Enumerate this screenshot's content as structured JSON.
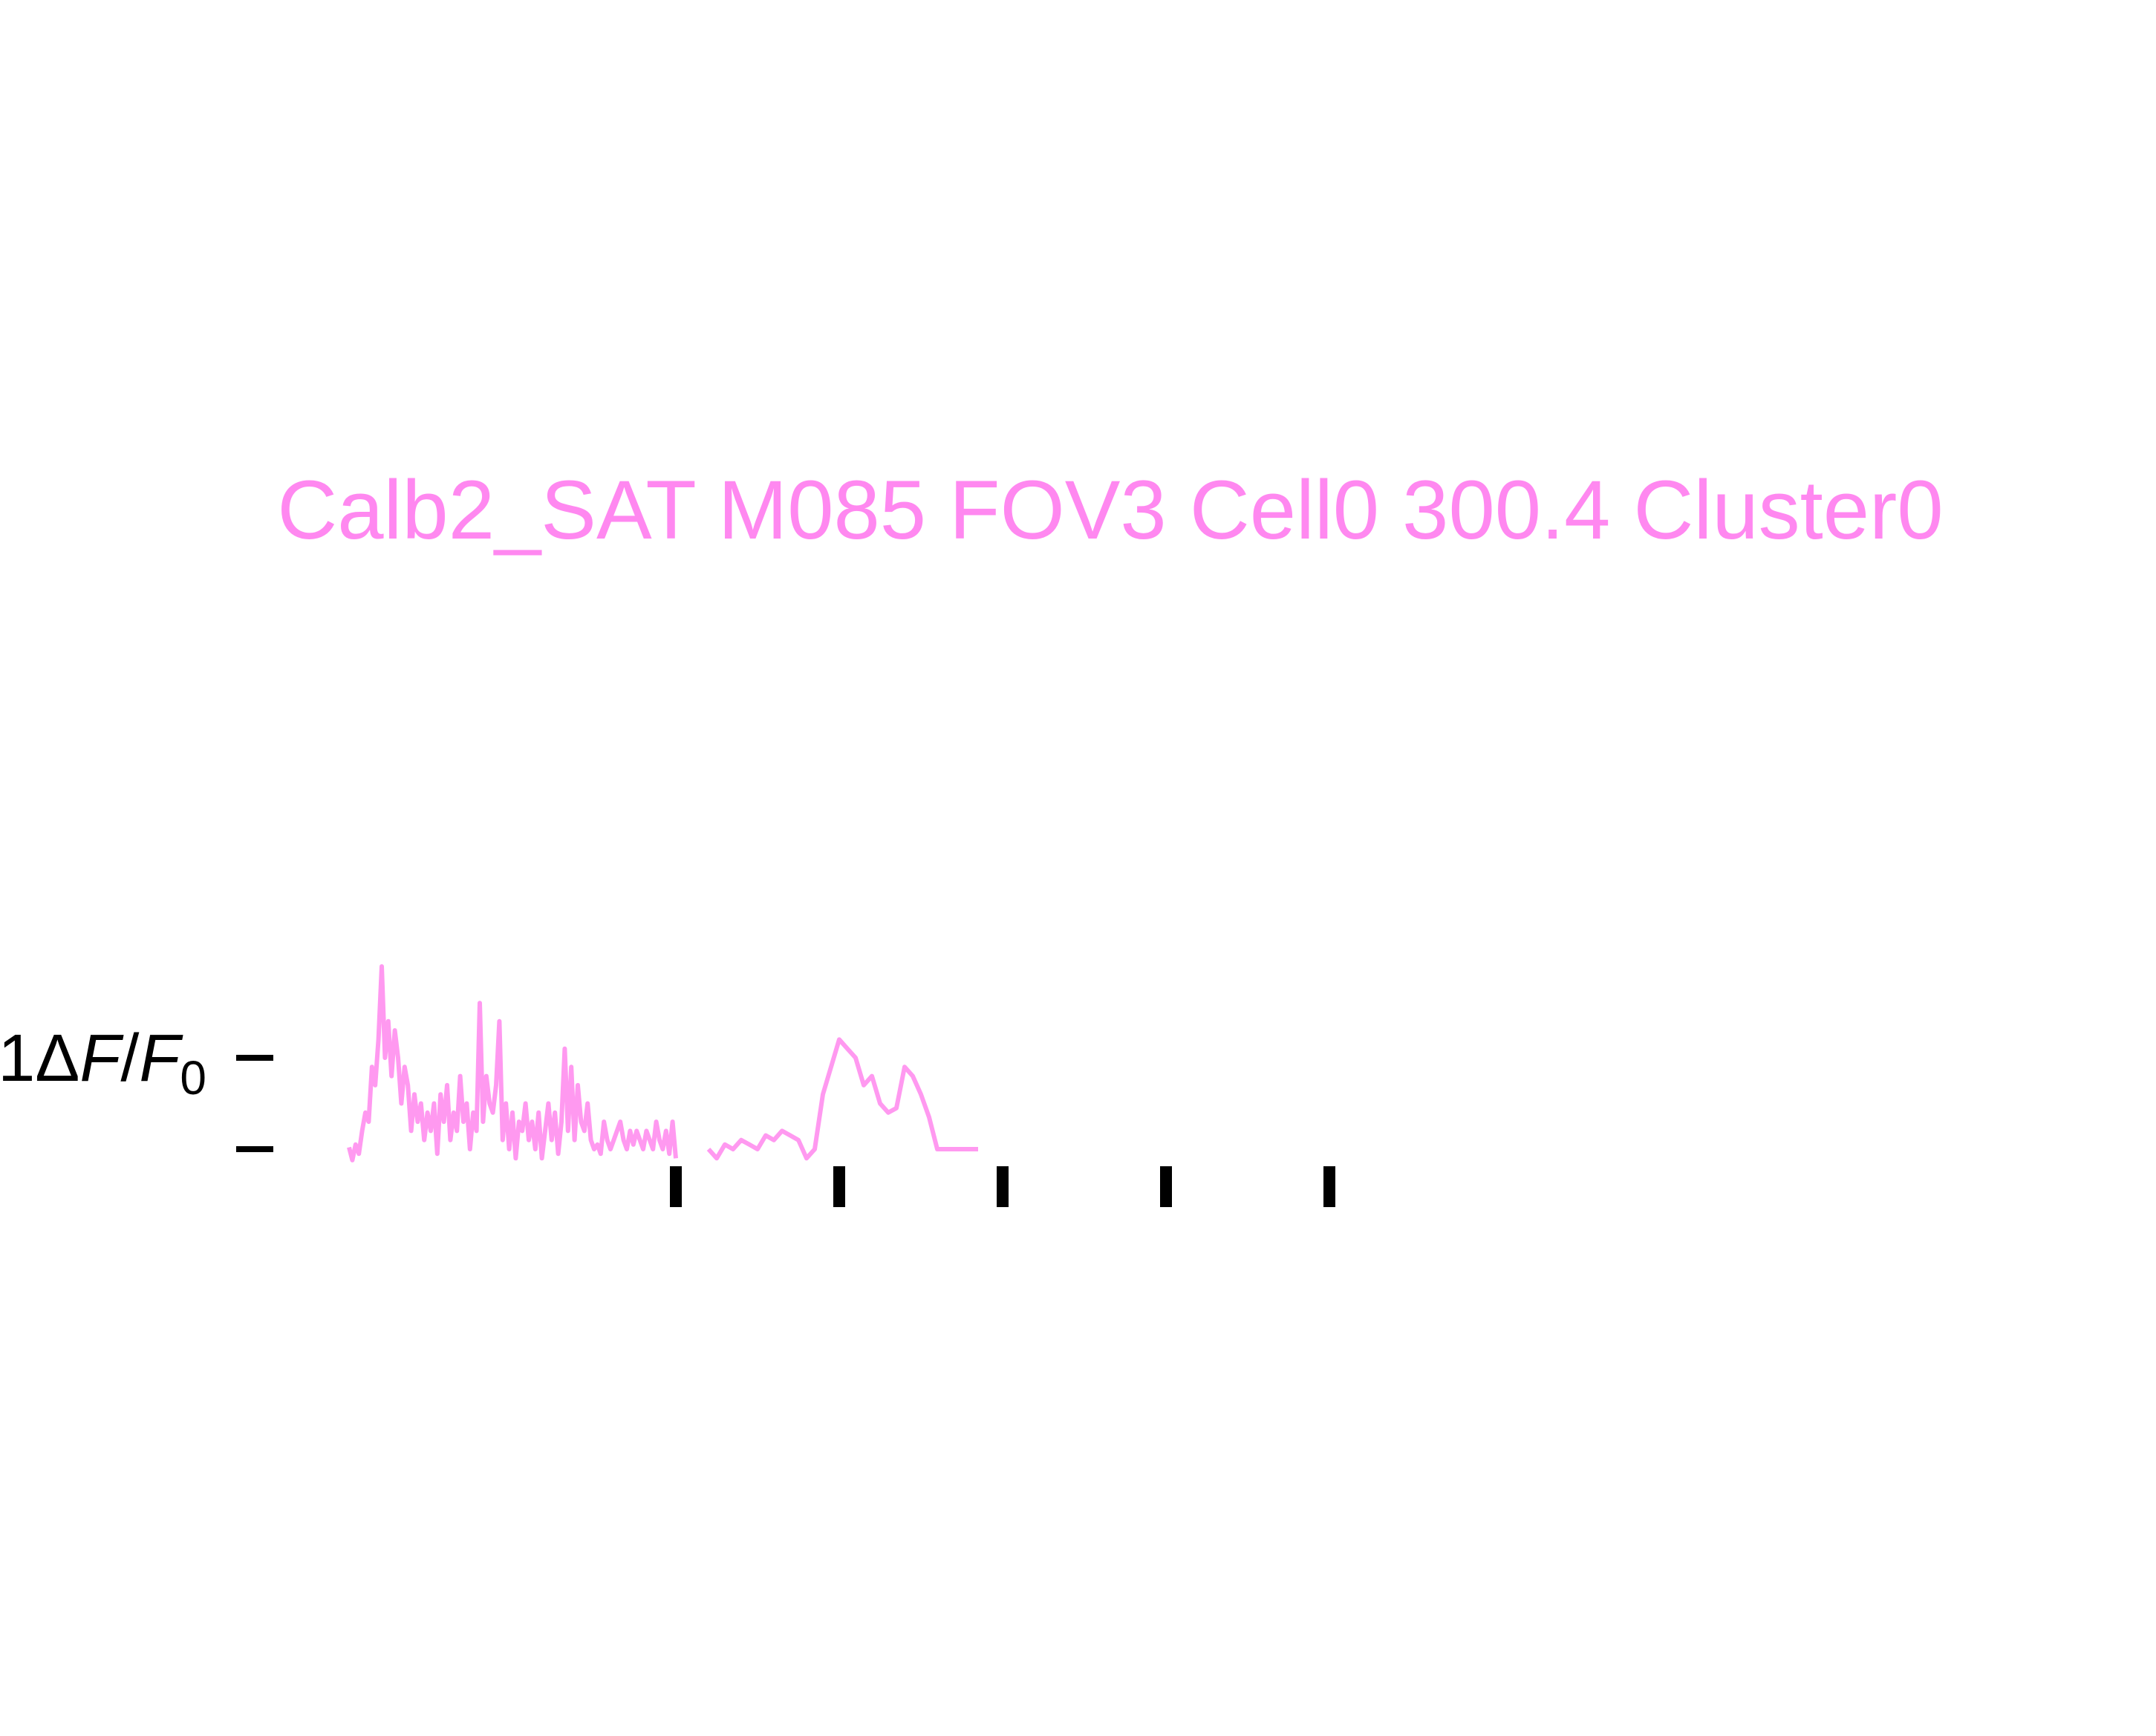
{
  "chart_data": {
    "type": "line",
    "title": "Calb2_SAT M085 FOV3 Cell0 300.4 Cluster0",
    "ylabel_parts": [
      "1",
      "Δ",
      "F",
      "/",
      "F",
      "0"
    ],
    "colors": {
      "trace": "#ff99f0",
      "title": "#ff88f0",
      "scale": "#000000"
    },
    "scale_bar": {
      "low": 0,
      "high": 1
    },
    "ylim": [
      -0.25,
      2.7
    ],
    "stimulus_markers": [
      2,
      3,
      4,
      5,
      6
    ],
    "segments": [
      {
        "x": [
          0.0,
          0.02,
          0.04,
          0.06,
          0.08,
          0.1,
          0.12,
          0.14,
          0.16,
          0.18,
          0.2,
          0.22,
          0.24,
          0.26,
          0.28,
          0.3,
          0.32,
          0.34,
          0.36,
          0.38,
          0.4,
          0.42,
          0.44,
          0.46,
          0.48,
          0.5,
          0.52,
          0.54,
          0.56,
          0.58,
          0.6,
          0.62,
          0.64,
          0.66,
          0.68,
          0.7,
          0.72,
          0.74,
          0.76,
          0.78,
          0.8,
          0.82,
          0.84,
          0.86,
          0.88,
          0.9,
          0.92,
          0.94,
          0.96,
          0.98,
          1.0,
          1.02,
          1.04,
          1.06,
          1.08,
          1.1,
          1.12,
          1.14,
          1.16,
          1.18,
          1.2,
          1.22,
          1.24,
          1.26,
          1.28,
          1.3,
          1.32,
          1.34,
          1.36,
          1.38,
          1.4,
          1.42,
          1.44,
          1.46,
          1.48,
          1.5,
          1.52,
          1.54,
          1.56,
          1.58,
          1.6,
          1.62,
          1.64,
          1.66,
          1.68,
          1.7,
          1.72,
          1.74,
          1.76,
          1.78,
          1.8,
          1.82,
          1.84,
          1.86,
          1.88,
          1.9,
          1.92,
          1.94,
          1.96,
          1.98,
          2.0
        ],
        "y": [
          0.02,
          -0.12,
          0.05,
          -0.05,
          0.2,
          0.4,
          0.3,
          0.9,
          0.7,
          1.2,
          2.0,
          1.0,
          1.4,
          0.8,
          1.3,
          1.0,
          0.5,
          0.9,
          0.7,
          0.2,
          0.6,
          0.3,
          0.5,
          0.1,
          0.4,
          0.2,
          0.5,
          -0.05,
          0.6,
          0.3,
          0.7,
          0.1,
          0.4,
          0.2,
          0.8,
          0.3,
          0.5,
          0.0,
          0.4,
          0.2,
          1.6,
          0.3,
          0.8,
          0.5,
          0.4,
          0.7,
          1.4,
          0.1,
          0.5,
          0.0,
          0.4,
          -0.1,
          0.3,
          0.2,
          0.5,
          0.1,
          0.3,
          0.0,
          0.4,
          -0.1,
          0.2,
          0.5,
          0.1,
          0.4,
          -0.05,
          0.3,
          1.1,
          0.2,
          0.9,
          0.1,
          0.7,
          0.3,
          0.2,
          0.5,
          0.1,
          0.0,
          0.05,
          -0.05,
          0.3,
          0.1,
          0.0,
          0.1,
          0.2,
          0.3,
          0.1,
          0.0,
          0.2,
          0.05,
          0.2,
          0.1,
          0.0,
          0.2,
          0.1,
          0.0,
          0.3,
          0.1,
          0.0,
          0.2,
          -0.05,
          0.3,
          -0.1
        ]
      },
      {
        "x": [
          2.2,
          2.25,
          2.3,
          2.35,
          2.4,
          2.45,
          2.5,
          2.55,
          2.6,
          2.65,
          2.7,
          2.75,
          2.8,
          2.85,
          2.9,
          2.95,
          3.0,
          3.05,
          3.1,
          3.15,
          3.2,
          3.25,
          3.3,
          3.35,
          3.4,
          3.45,
          3.5,
          3.55,
          3.6,
          3.65,
          3.7,
          3.75,
          3.8,
          3.85
        ],
        "y": [
          0.0,
          -0.1,
          0.05,
          0.0,
          0.1,
          0.05,
          0.0,
          0.15,
          0.1,
          0.2,
          0.15,
          0.1,
          -0.1,
          0.0,
          0.6,
          0.9,
          1.2,
          1.1,
          1.0,
          0.7,
          0.8,
          0.5,
          0.4,
          0.45,
          0.9,
          0.8,
          0.6,
          0.35,
          0.0,
          0.0,
          0.0,
          0.0,
          0.0,
          0.0
        ]
      }
    ]
  }
}
